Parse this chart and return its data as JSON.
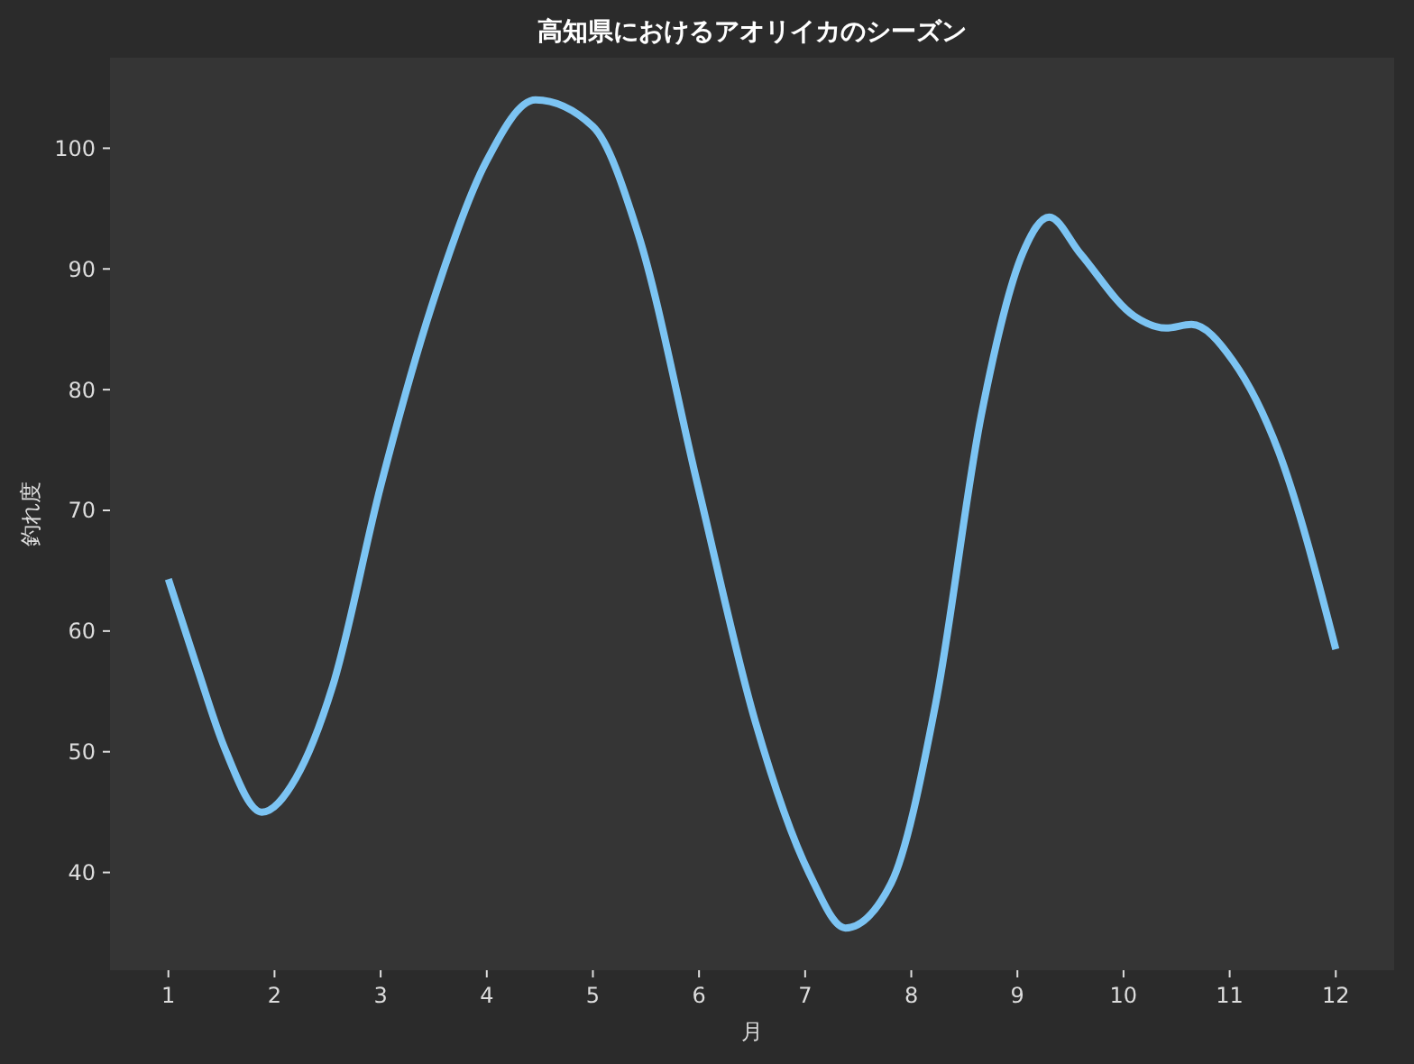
{
  "chart_data": {
    "type": "line",
    "title": "高知県におけるアオリイカのシーズン",
    "xlabel": "月",
    "ylabel": "釣れ度",
    "xlim": [
      0.45,
      12.55
    ],
    "ylim": [
      31.9,
      107.5
    ],
    "xticks": [
      1,
      2,
      3,
      4,
      5,
      6,
      7,
      8,
      9,
      10,
      11,
      12
    ],
    "yticks": [
      40,
      50,
      60,
      70,
      80,
      90,
      100
    ],
    "grid": false,
    "marker": "none",
    "line_style": "solid",
    "series": [
      {
        "color": "#7cc4f3",
        "x": [
          1,
          1.27,
          1.53,
          1.88,
          2.2,
          2.55,
          3,
          3.48,
          3.99,
          4.46,
          5.0,
          5.43,
          5.99,
          6.53,
          7.04,
          7.38,
          7.81,
          8.23,
          8.66,
          9.05,
          9.3,
          9.59,
          10.1,
          10.4,
          10.64,
          11.03,
          11.46,
          12
        ],
        "values": [
          64.3,
          57,
          50.3,
          45.0,
          47.8,
          55.5,
          72,
          86.9,
          98.8,
          104,
          101.8,
          92.8,
          72,
          52.5,
          39.9,
          35.4,
          39.1,
          54,
          77.9,
          91.3,
          94.3,
          91.3,
          86.1,
          85.1,
          85.4,
          82.4,
          74.9,
          58.5
        ]
      }
    ]
  }
}
